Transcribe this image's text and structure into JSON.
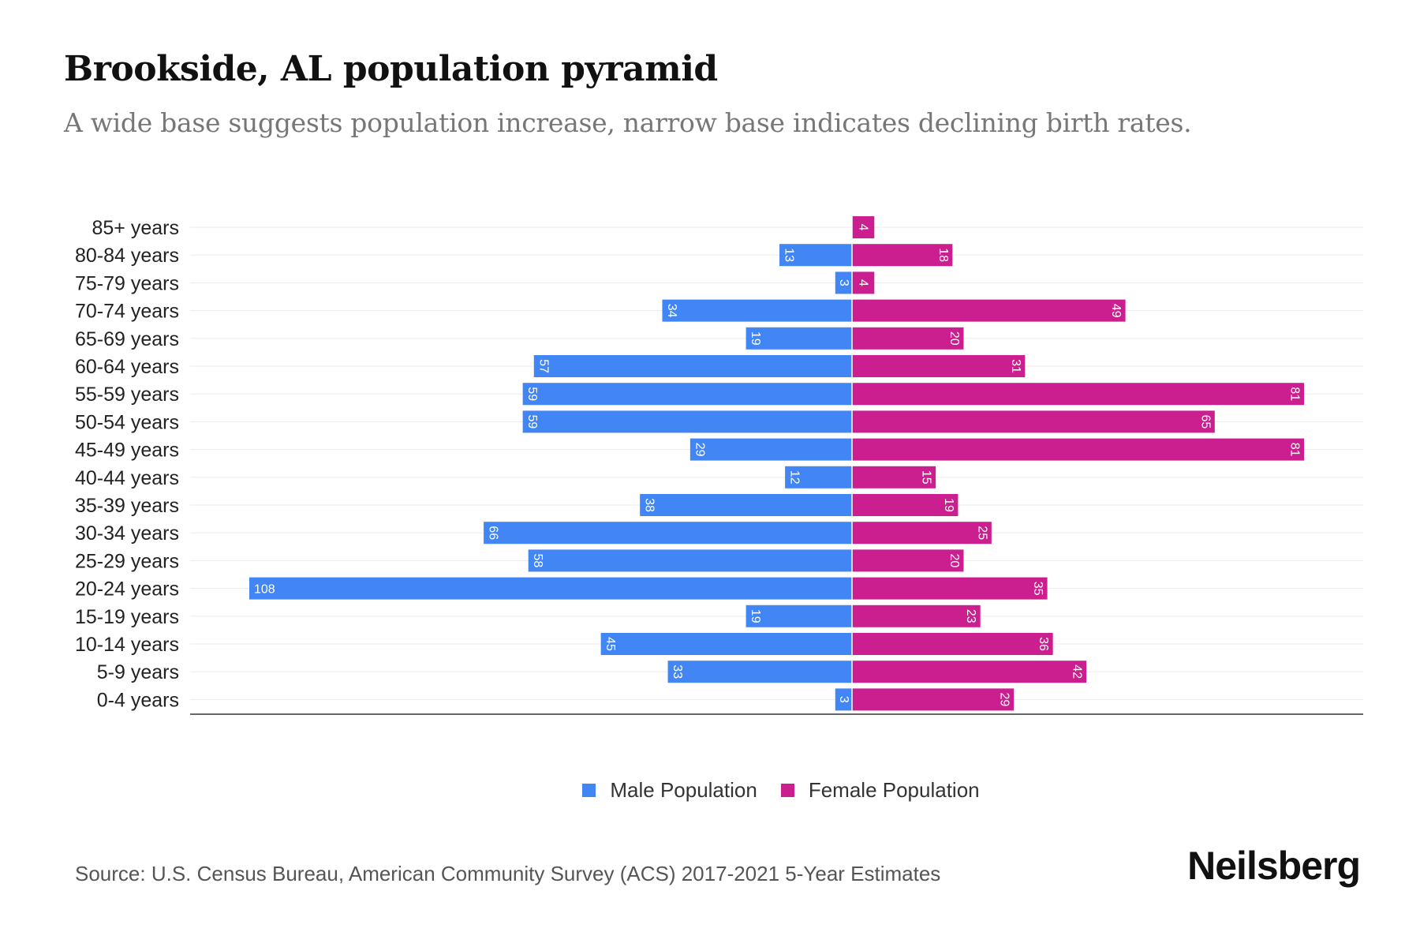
{
  "title": "Brookside, AL population pyramid",
  "subtitle": "A wide base suggests population increase, narrow base indicates declining birth rates.",
  "source": "Source: U.S. Census Bureau, American Community Survey (ACS) 2017-2021 5-Year Estimates",
  "logo": "Neilsberg",
  "colors": {
    "male": "#4285F4",
    "female": "#CC1F8F"
  },
  "chart_data": {
    "type": "bar",
    "orientation": "horizontal-pyramid",
    "categories": [
      "85+ years",
      "80-84 years",
      "75-79 years",
      "70-74 years",
      "65-69 years",
      "60-64 years",
      "55-59 years",
      "50-54 years",
      "45-49 years",
      "40-44 years",
      "35-39 years",
      "30-34 years",
      "25-29 years",
      "20-24 years",
      "15-19 years",
      "10-14 years",
      "5-9 years",
      "0-4 years"
    ],
    "series": [
      {
        "name": "Male Population",
        "values": [
          0,
          13,
          3,
          34,
          19,
          57,
          59,
          59,
          29,
          12,
          38,
          66,
          58,
          108,
          19,
          45,
          33,
          3
        ]
      },
      {
        "name": "Female Population",
        "values": [
          4,
          18,
          4,
          49,
          20,
          31,
          81,
          65,
          81,
          15,
          19,
          25,
          20,
          35,
          23,
          36,
          42,
          29
        ]
      }
    ],
    "xlim": [
      -108,
      108
    ],
    "grid": true,
    "legend": "bottom-center"
  }
}
